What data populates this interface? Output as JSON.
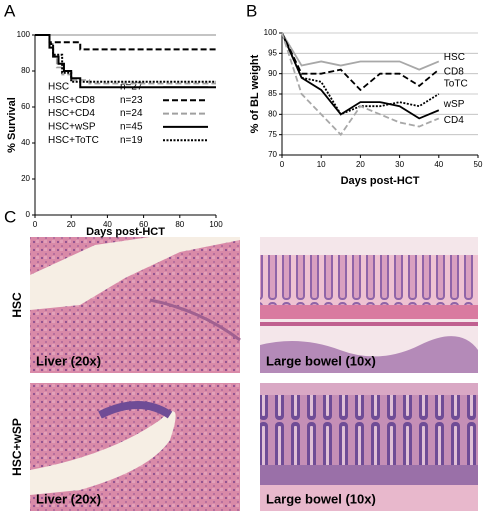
{
  "panels": [
    "A",
    "B",
    "C"
  ],
  "chart_data": [
    {
      "type": "step",
      "xlabel": "Days post-HCT",
      "ylabel": "% Survival",
      "xlim": [
        0,
        100
      ],
      "xticks": [
        0,
        20,
        40,
        60,
        80,
        100
      ],
      "ylim": [
        0,
        100
      ],
      "yticks": [
        0,
        20,
        40,
        60,
        80,
        100
      ],
      "series": [
        {
          "name": "HSC",
          "n_label": "n=27",
          "color": "#b0b0b0",
          "linestyle": "solid",
          "x": [
            0,
            100
          ],
          "values": [
            100,
            100
          ]
        },
        {
          "name": "HSC+CD8",
          "n_label": "n=23",
          "color": "#000000",
          "linestyle": "dashed",
          "x": [
            0,
            8,
            25,
            100
          ],
          "values": [
            100,
            96,
            92,
            92
          ]
        },
        {
          "name": "HSC+CD4",
          "n_label": "n=24",
          "color": "#a0a0a0",
          "linestyle": "dashed",
          "x": [
            0,
            8,
            10,
            12,
            15,
            20,
            30,
            100
          ],
          "values": [
            100,
            95,
            88,
            82,
            78,
            75,
            73,
            73
          ]
        },
        {
          "name": "HSC+wSP",
          "n_label": "n=45",
          "color": "#000000",
          "linestyle": "solid",
          "x": [
            0,
            8,
            10,
            13,
            16,
            20,
            25,
            100
          ],
          "values": [
            100,
            93,
            88,
            84,
            80,
            76,
            71,
            71
          ]
        },
        {
          "name": "HSC+ToTC",
          "n_label": "n=19",
          "color": "#000000",
          "linestyle": "dotted",
          "x": [
            0,
            8,
            10,
            15,
            20,
            100
          ],
          "values": [
            100,
            95,
            89,
            79,
            74,
            74
          ]
        }
      ]
    },
    {
      "type": "line",
      "xlabel": "Days post-HCT",
      "ylabel": "% of BL weight",
      "xlim": [
        0,
        50
      ],
      "xticks": [
        0,
        10,
        20,
        30,
        40,
        50
      ],
      "ylim": [
        70,
        100
      ],
      "yticks": [
        70,
        75,
        80,
        85,
        90,
        95,
        100
      ],
      "grid": true,
      "x": [
        0,
        5,
        10,
        15,
        20,
        25,
        30,
        35,
        40
      ],
      "series": [
        {
          "name": "HSC",
          "color": "#a8a8a8",
          "linestyle": "solid",
          "values": [
            100,
            92,
            93,
            92,
            93,
            93,
            93,
            91,
            93
          ]
        },
        {
          "name": "CD8",
          "color": "#000000",
          "linestyle": "dashed",
          "values": [
            100,
            90,
            90,
            91,
            86,
            90,
            90,
            87,
            91
          ]
        },
        {
          "name": "ToTC",
          "color": "#000000",
          "linestyle": "dotted",
          "values": [
            100,
            89,
            88,
            80,
            82,
            82,
            83,
            82,
            85
          ]
        },
        {
          "name": "wSP",
          "color": "#000000",
          "linestyle": "solid",
          "values": [
            100,
            89,
            86,
            80,
            83,
            83,
            82,
            79,
            81
          ]
        },
        {
          "name": "CD4",
          "color": "#a8a8a8",
          "linestyle": "dashed",
          "values": [
            100,
            85,
            80,
            75,
            82,
            80,
            78,
            77,
            79
          ]
        }
      ]
    }
  ],
  "histology": {
    "rows": [
      "HSC",
      "HSC+wSP"
    ],
    "columns": [
      "Liver (20x)",
      "Large bowel (10x)"
    ]
  }
}
